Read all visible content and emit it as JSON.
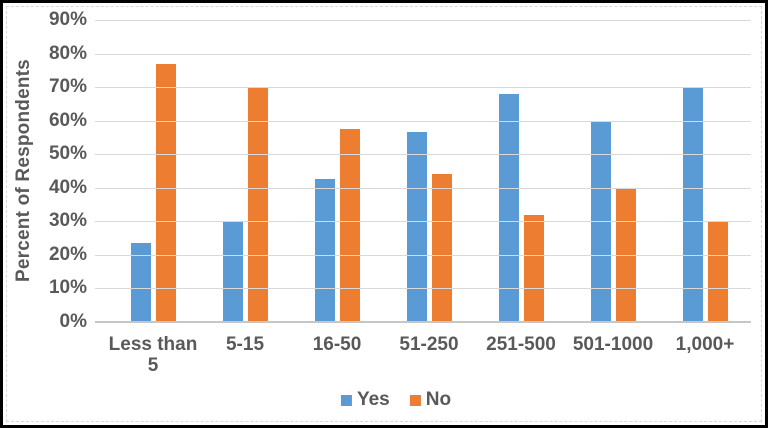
{
  "chart_data": {
    "type": "bar",
    "title": "",
    "xlabel": "",
    "ylabel": "Percent of Respondents",
    "categories": [
      "Less than 5",
      "5-15",
      "16-50",
      "51-250",
      "251-500",
      "501-1000",
      "1,000+"
    ],
    "series": [
      {
        "name": "Yes",
        "color": "#5B9BD5",
        "values": [
          23.5,
          30,
          42.5,
          56.5,
          68,
          60,
          70
        ]
      },
      {
        "name": "No",
        "color": "#ED7D31",
        "values": [
          77,
          70,
          57.5,
          44,
          32,
          40,
          30
        ]
      }
    ],
    "ylim": [
      0,
      90
    ],
    "yticks": [
      0,
      10,
      20,
      30,
      40,
      50,
      60,
      70,
      80,
      90
    ],
    "ytick_labels": [
      "0%",
      "10%",
      "20%",
      "30%",
      "40%",
      "50%",
      "60%",
      "70%",
      "80%",
      "90%"
    ],
    "grid": true,
    "legend_position": "bottom"
  },
  "colors": {
    "bar_yes": "#5B9BD5",
    "bar_no": "#ED7D31",
    "gridline": "#d9d9d9",
    "axis_line": "#c6c6c6",
    "text": "#595959",
    "frame_border": "#000000",
    "background": "#ffffff"
  }
}
